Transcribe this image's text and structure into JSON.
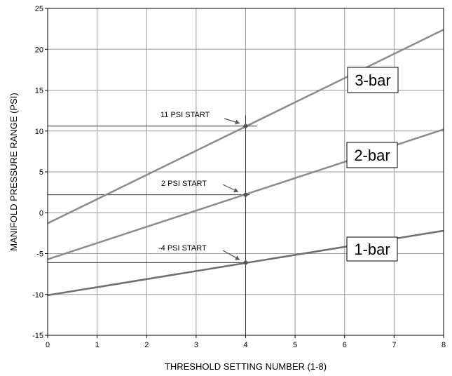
{
  "chart_data": {
    "type": "line",
    "title": "",
    "xlabel": "THRESHOLD SETTING NUMBER (1-8)",
    "ylabel": "MANIFOLD PRESSURE RANGE (PSI)",
    "xlim": [
      0,
      8
    ],
    "ylim": [
      -15,
      25
    ],
    "x_ticks": [
      0,
      1,
      2,
      3,
      4,
      5,
      6,
      7,
      8
    ],
    "y_ticks": [
      -15,
      -10,
      -5,
      0,
      5,
      10,
      15,
      20,
      25
    ],
    "grid": true,
    "legend": "none",
    "series": [
      {
        "name": "1-bar",
        "x": [
          0,
          8
        ],
        "y": [
          -10.1,
          -2.2
        ],
        "color": "#6f6f6f"
      },
      {
        "name": "2-bar",
        "x": [
          0,
          8
        ],
        "y": [
          -5.7,
          10.2
        ],
        "color": "#8c8c8c"
      },
      {
        "name": "3-bar",
        "x": [
          0,
          8
        ],
        "y": [
          -1.3,
          22.4
        ],
        "color": "#8c8c8c"
      }
    ],
    "annotations": [
      {
        "text": "11 PSI START",
        "x": 4,
        "y": 10.6
      },
      {
        "text": "2 PSI START",
        "x": 4,
        "y": 2.2
      },
      {
        "text": "-4 PSI START",
        "x": 4,
        "y": -6.1
      }
    ],
    "reference_x": 4
  }
}
